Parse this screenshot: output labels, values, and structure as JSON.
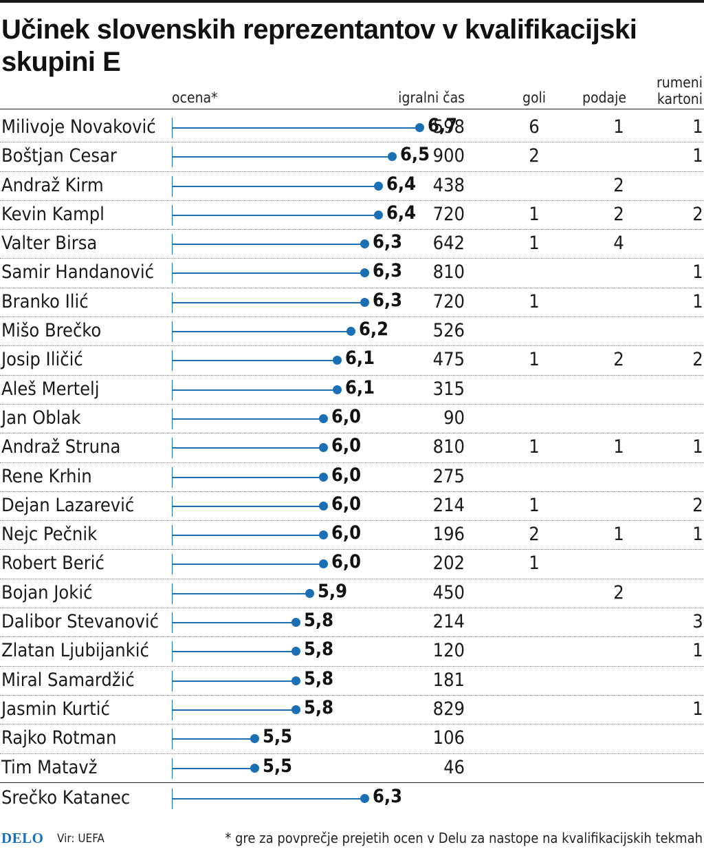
{
  "chart_data": {
    "type": "table",
    "title": "Učinek slovenskih reprezentantov v kvalifikacijski skupini E",
    "columns": [
      "ocena*",
      "igralni čas",
      "goli",
      "podaje",
      "rumeni kartoni"
    ],
    "rating_range": [
      4.9,
      7.0
    ],
    "rows": [
      {
        "name": "Milivoje Novaković",
        "rating": 6.7,
        "rating_label": "6,7",
        "time": "598",
        "goals": "6",
        "assists": "1",
        "cards": "1"
      },
      {
        "name": "Boštjan Cesar",
        "rating": 6.5,
        "rating_label": "6,5",
        "time": "900",
        "goals": "2",
        "assists": "",
        "cards": "1"
      },
      {
        "name": "Andraž Kirm",
        "rating": 6.4,
        "rating_label": "6,4",
        "time": "438",
        "goals": "",
        "assists": "2",
        "cards": ""
      },
      {
        "name": "Kevin Kampl",
        "rating": 6.4,
        "rating_label": "6,4",
        "time": "720",
        "goals": "1",
        "assists": "2",
        "cards": "2"
      },
      {
        "name": "Valter Birsa",
        "rating": 6.3,
        "rating_label": "6,3",
        "time": "642",
        "goals": "1",
        "assists": "4",
        "cards": ""
      },
      {
        "name": "Samir Handanović",
        "rating": 6.3,
        "rating_label": "6,3",
        "time": "810",
        "goals": "",
        "assists": "",
        "cards": "1"
      },
      {
        "name": "Branko Ilić",
        "rating": 6.3,
        "rating_label": "6,3",
        "time": "720",
        "goals": "1",
        "assists": "",
        "cards": "1"
      },
      {
        "name": "Mišo Brečko",
        "rating": 6.2,
        "rating_label": "6,2",
        "time": "526",
        "goals": "",
        "assists": "",
        "cards": ""
      },
      {
        "name": "Josip Iličić",
        "rating": 6.1,
        "rating_label": "6,1",
        "time": "475",
        "goals": "1",
        "assists": "2",
        "cards": "2"
      },
      {
        "name": "Aleš Mertelj",
        "rating": 6.1,
        "rating_label": "6,1",
        "time": "315",
        "goals": "",
        "assists": "",
        "cards": ""
      },
      {
        "name": "Jan Oblak",
        "rating": 6.0,
        "rating_label": "6,0",
        "time": "90",
        "goals": "",
        "assists": "",
        "cards": ""
      },
      {
        "name": "Andraž Struna",
        "rating": 6.0,
        "rating_label": "6,0",
        "time": "810",
        "goals": "1",
        "assists": "1",
        "cards": "1"
      },
      {
        "name": "Rene Krhin",
        "rating": 6.0,
        "rating_label": "6,0",
        "time": "275",
        "goals": "",
        "assists": "",
        "cards": ""
      },
      {
        "name": "Dejan Lazarević",
        "rating": 6.0,
        "rating_label": "6,0",
        "time": "214",
        "goals": "1",
        "assists": "",
        "cards": "2"
      },
      {
        "name": "Nejc Pečnik",
        "rating": 6.0,
        "rating_label": "6,0",
        "time": "196",
        "goals": "2",
        "assists": "1",
        "cards": "1"
      },
      {
        "name": "Robert Berić",
        "rating": 6.0,
        "rating_label": "6,0",
        "time": "202",
        "goals": "1",
        "assists": "",
        "cards": ""
      },
      {
        "name": "Bojan Jokić",
        "rating": 5.9,
        "rating_label": "5,9",
        "time": "450",
        "goals": "",
        "assists": "2",
        "cards": ""
      },
      {
        "name": "Dalibor Stevanović",
        "rating": 5.8,
        "rating_label": "5,8",
        "time": "214",
        "goals": "",
        "assists": "",
        "cards": "3"
      },
      {
        "name": "Zlatan Ljubijankić",
        "rating": 5.8,
        "rating_label": "5,8",
        "time": "120",
        "goals": "",
        "assists": "",
        "cards": "1"
      },
      {
        "name": "Miral Samardžić",
        "rating": 5.8,
        "rating_label": "5,8",
        "time": "181",
        "goals": "",
        "assists": "",
        "cards": ""
      },
      {
        "name": "Jasmin Kurtić",
        "rating": 5.8,
        "rating_label": "5,8",
        "time": "829",
        "goals": "",
        "assists": "",
        "cards": "1"
      },
      {
        "name": "Rajko Rotman",
        "rating": 5.5,
        "rating_label": "5,5",
        "time": "106",
        "goals": "",
        "assists": "",
        "cards": ""
      },
      {
        "name": "Tim Matavž",
        "rating": 5.5,
        "rating_label": "5,5",
        "time": "46",
        "goals": "",
        "assists": "",
        "cards": ""
      }
    ],
    "coach": {
      "name": "Srečko Katanec",
      "rating": 6.3,
      "rating_label": "6,3"
    }
  },
  "header": {
    "rating": "ocena*",
    "time": "igralni čas",
    "goals": "goli",
    "assists": "podaje",
    "cards_line1": "rumeni",
    "cards_line2": "kartoni"
  },
  "footer": {
    "logo": "DELO",
    "source": "Vir: UEFA",
    "note": "* gre za povprečje prejetih ocen v Delu za nastope na kvalifikacijskih tekmah"
  },
  "colors": {
    "accent": "#1b6fb5",
    "text": "#1a1a1a"
  }
}
